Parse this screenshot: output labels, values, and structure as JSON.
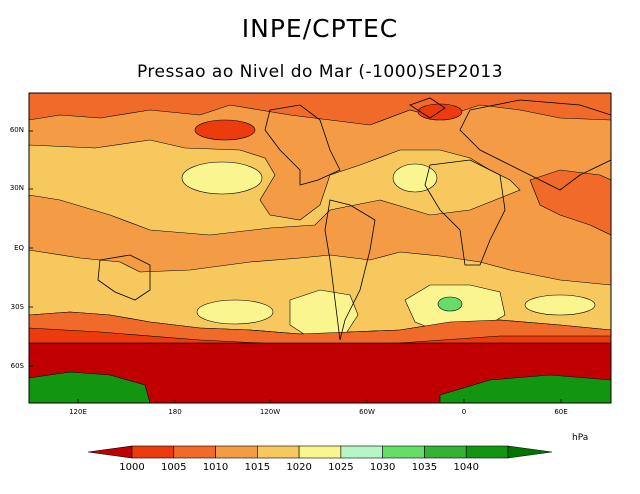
{
  "title": "INPE/CPTEC",
  "subtitle": "Pressao ao Nivel do Mar (-1000)SEP2013",
  "axes": {
    "lat_labels": [
      "60N",
      "30N",
      "EQ",
      "30S",
      "60S"
    ],
    "lon_labels": [
      "120E",
      "180",
      "120W",
      "60W",
      "0",
      "60E"
    ]
  },
  "colorbar": {
    "unit": "hPa",
    "levels": [
      "1000",
      "1005",
      "1010",
      "1015",
      "1020",
      "1025",
      "1030",
      "1035",
      "1040"
    ],
    "colors": [
      "#c00000",
      "#ec3b0d",
      "#f06a2a",
      "#f39c45",
      "#f6c85e",
      "#fbf58f",
      "#b6f5c6",
      "#66dd66",
      "#33b233",
      "#129612",
      "#007400"
    ]
  }
}
